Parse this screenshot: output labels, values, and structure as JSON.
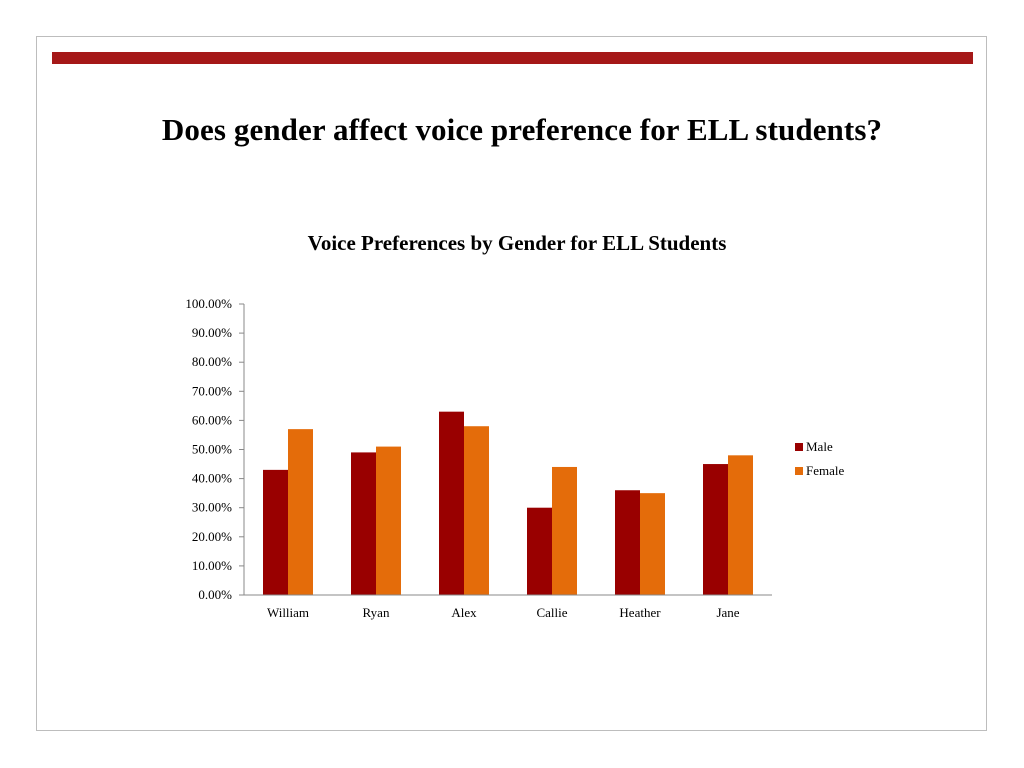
{
  "slide": {
    "title": "Does gender affect voice preference for ELL students?"
  },
  "colors": {
    "accent_bar": "#a51818",
    "male": "#990000",
    "female": "#e46c0a",
    "axis": "#888888"
  },
  "chart_data": {
    "type": "bar",
    "title": "Voice Preferences by Gender for ELL Students",
    "xlabel": "",
    "ylabel": "",
    "categories": [
      "William",
      "Ryan",
      "Alex",
      "Callie",
      "Heather",
      "Jane"
    ],
    "series": [
      {
        "name": "Male",
        "color": "#990000",
        "values": [
          0.43,
          0.49,
          0.63,
          0.3,
          0.36,
          0.45
        ]
      },
      {
        "name": "Female",
        "color": "#e46c0a",
        "values": [
          0.57,
          0.51,
          0.58,
          0.44,
          0.35,
          0.48
        ]
      }
    ],
    "ylim": [
      0,
      1
    ],
    "ytick_labels": [
      "0.00%",
      "10.00%",
      "20.00%",
      "30.00%",
      "40.00%",
      "50.00%",
      "60.00%",
      "70.00%",
      "80.00%",
      "90.00%",
      "100.00%"
    ],
    "grid": false,
    "legend_position": "right"
  }
}
